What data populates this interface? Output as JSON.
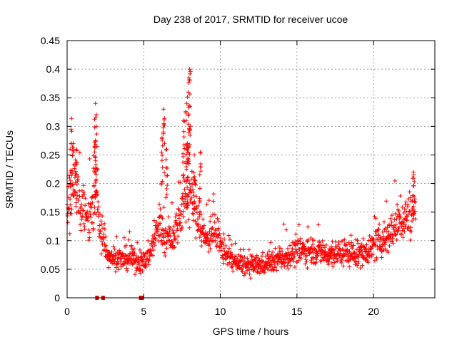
{
  "chart_data": {
    "type": "scatter",
    "title": "Day 238 of 2017, SRMTID for receiver ucoe",
    "xlabel": "GPS time / hours",
    "ylabel": "SRMTID / TECUs",
    "xlim": [
      0,
      24
    ],
    "ylim": [
      0,
      0.45
    ],
    "x_ticks": [
      0,
      5,
      10,
      15,
      20
    ],
    "x_tick_labels": [
      "0",
      "5",
      "10",
      "15",
      "20"
    ],
    "y_ticks": [
      0,
      0.05,
      0.1,
      0.15,
      0.2,
      0.25,
      0.3,
      0.35,
      0.4,
      0.45
    ],
    "y_tick_labels": [
      "0",
      "0.05",
      "0.1",
      "0.15",
      "0.2",
      "0.25",
      "0.3",
      "0.35",
      "0.4",
      "0.45"
    ],
    "grid": true,
    "marker": "+",
    "color": "#ff0000",
    "trend": {
      "x": [
        0,
        0.3,
        0.6,
        1.0,
        1.4,
        1.8,
        2.2,
        2.6,
        3.0,
        3.5,
        4.0,
        4.5,
        5.0,
        5.5,
        6.0,
        6.5,
        7.0,
        7.5,
        8.0,
        8.5,
        9.0,
        9.5,
        10.0,
        11.0,
        12.0,
        13.0,
        14.0,
        15.0,
        16.0,
        17.0,
        18.0,
        19.0,
        20.0,
        21.0,
        22.0,
        22.7
      ],
      "y": [
        0.16,
        0.19,
        0.2,
        0.15,
        0.13,
        0.18,
        0.12,
        0.08,
        0.07,
        0.065,
        0.07,
        0.065,
        0.06,
        0.085,
        0.13,
        0.1,
        0.11,
        0.16,
        0.18,
        0.15,
        0.1,
        0.12,
        0.09,
        0.06,
        0.055,
        0.06,
        0.07,
        0.08,
        0.085,
        0.075,
        0.08,
        0.075,
        0.09,
        0.11,
        0.14,
        0.15
      ]
    },
    "spikes": [
      {
        "x": 1.85,
        "y": 0.34
      },
      {
        "x": 1.9,
        "y": 0.3
      },
      {
        "x": 1.8,
        "y": 0.265
      },
      {
        "x": 0.4,
        "y": 0.27
      },
      {
        "x": 0.6,
        "y": 0.26
      },
      {
        "x": 0.25,
        "y": 0.295
      },
      {
        "x": 6.3,
        "y": 0.33
      },
      {
        "x": 6.2,
        "y": 0.28
      },
      {
        "x": 6.5,
        "y": 0.26
      },
      {
        "x": 7.6,
        "y": 0.31
      },
      {
        "x": 7.8,
        "y": 0.34
      },
      {
        "x": 7.9,
        "y": 0.36
      },
      {
        "x": 7.95,
        "y": 0.385
      },
      {
        "x": 8.0,
        "y": 0.4
      },
      {
        "x": 7.85,
        "y": 0.27
      },
      {
        "x": 8.3,
        "y": 0.25
      },
      {
        "x": 8.7,
        "y": 0.255
      },
      {
        "x": 22.6,
        "y": 0.22
      }
    ],
    "zero_markers_x": [
      1.95,
      2.35,
      4.8,
      4.9
    ]
  }
}
